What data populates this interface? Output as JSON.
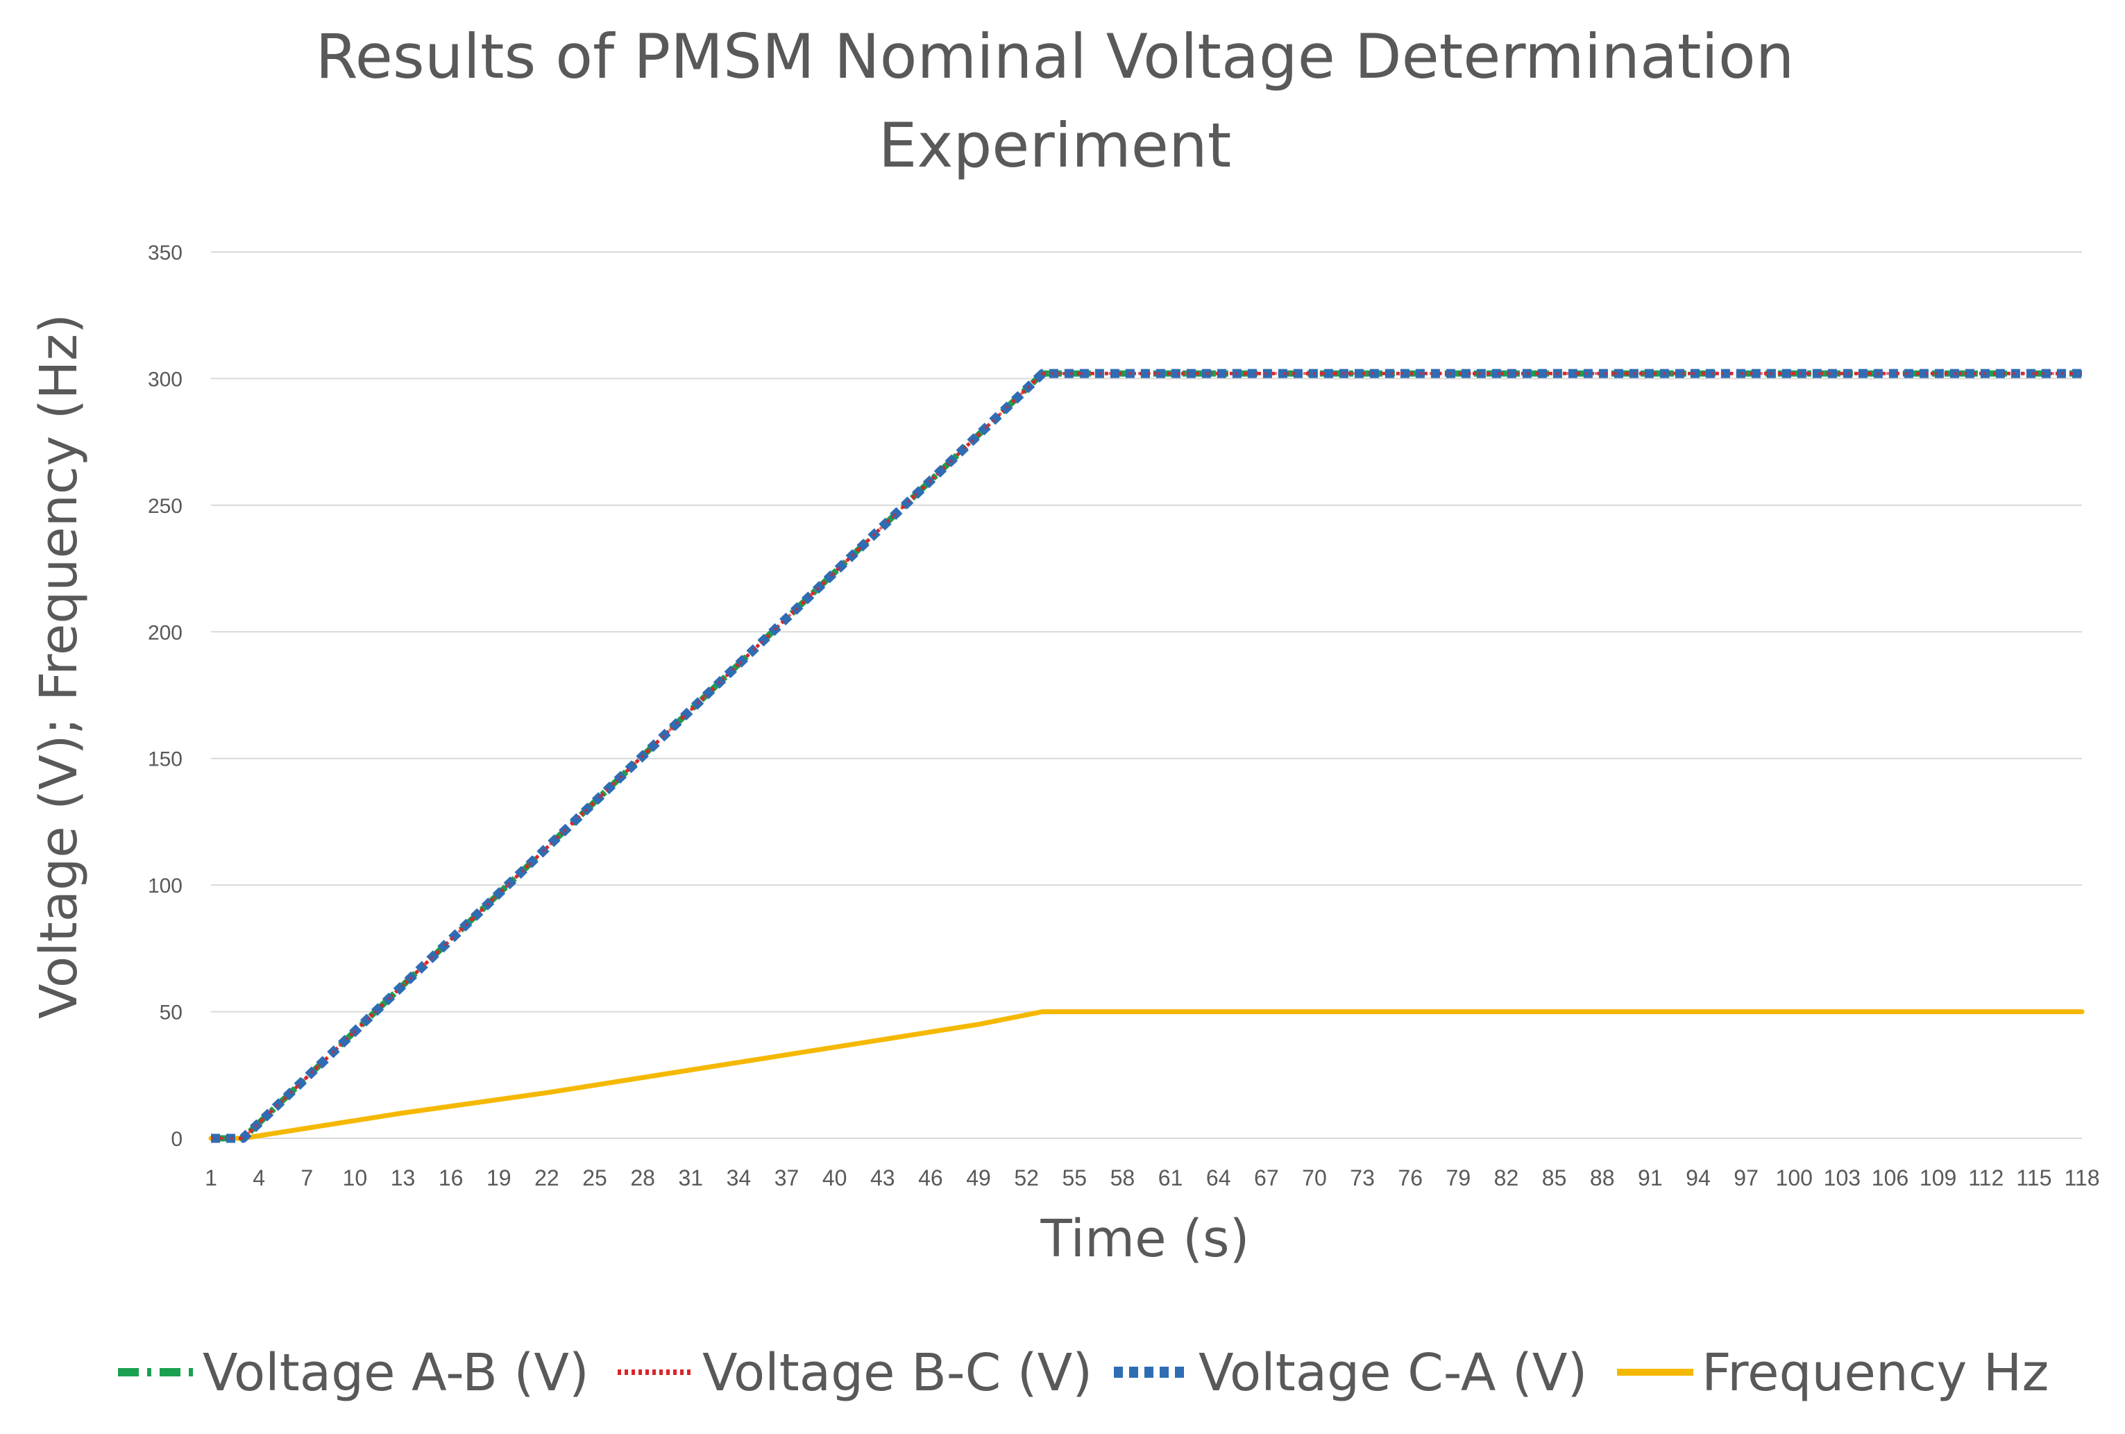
{
  "chart_data": {
    "type": "line",
    "title": [
      "Results of PMSM Nominal Voltage Determination",
      "Experiment"
    ],
    "xlabel": "Time (s)",
    "ylabel": "Voltage (V); Frequency (Hz)",
    "x_range": [
      1,
      118
    ],
    "x_tick_labels": [
      "1",
      "4",
      "7",
      "10",
      "13",
      "16",
      "19",
      "22",
      "25",
      "28",
      "31",
      "34",
      "37",
      "40",
      "43",
      "46",
      "49",
      "52",
      "55",
      "58",
      "61",
      "64",
      "67",
      "70",
      "73",
      "76",
      "79",
      "82",
      "85",
      "88",
      "91",
      "94",
      "97",
      "100",
      "103",
      "106",
      "109",
      "112",
      "115",
      "118"
    ],
    "ylim": [
      0,
      350
    ],
    "y_ticks": [
      0,
      50,
      100,
      150,
      200,
      250,
      300,
      350
    ],
    "grid": true,
    "legend_position": "bottom",
    "series": [
      {
        "name": "Voltage A-B (V)",
        "color": "#1aa050",
        "style": "dash-dot",
        "points": [
          [
            1,
            0
          ],
          [
            3,
            0
          ],
          [
            53,
            302
          ],
          [
            118,
            302
          ]
        ]
      },
      {
        "name": "Voltage B-C (V)",
        "color": "#d9262a",
        "style": "dotted",
        "points": [
          [
            1,
            0
          ],
          [
            3,
            0
          ],
          [
            53,
            302
          ],
          [
            118,
            302
          ]
        ]
      },
      {
        "name": "Voltage C-A (V)",
        "color": "#2e6db4",
        "style": "square-dot",
        "points": [
          [
            1,
            0
          ],
          [
            3,
            0
          ],
          [
            53,
            302
          ],
          [
            118,
            302
          ]
        ]
      },
      {
        "name": "Frequency Hz",
        "color": "#f5b800",
        "style": "solid",
        "points": [
          [
            1,
            0
          ],
          [
            3,
            0
          ],
          [
            13,
            10
          ],
          [
            22,
            18
          ],
          [
            31,
            27
          ],
          [
            40,
            36
          ],
          [
            49,
            45
          ],
          [
            53,
            50
          ],
          [
            118,
            50
          ]
        ]
      }
    ]
  }
}
